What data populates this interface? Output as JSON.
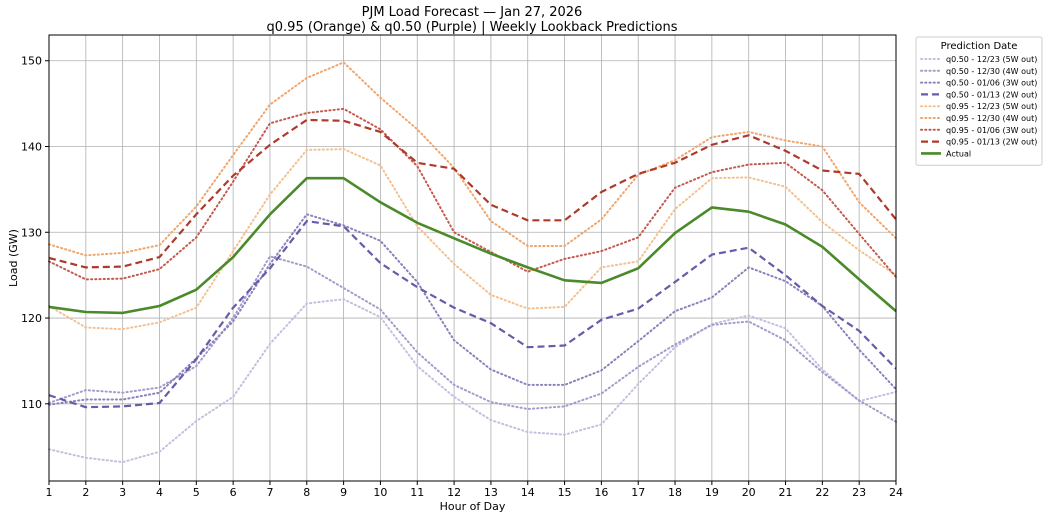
{
  "chart_data": {
    "type": "line",
    "title": "PJM Load Forecast — Jan 27, 2026",
    "subtitle": "q0.95 (Orange) & q0.50 (Purple) | Weekly Lookback Predictions",
    "xlabel": "Hour of Day",
    "ylabel": "Load (GW)",
    "xlim": [
      1,
      24
    ],
    "ylim": [
      101,
      153
    ],
    "x_ticks": [
      1,
      2,
      3,
      4,
      5,
      6,
      7,
      8,
      9,
      10,
      11,
      12,
      13,
      14,
      15,
      16,
      17,
      18,
      19,
      20,
      21,
      22,
      23,
      24
    ],
    "y_ticks": [
      110,
      120,
      130,
      140,
      150
    ],
    "grid": true,
    "legend_title": "Prediction Date",
    "legend_placement": "outside-right-top",
    "x": [
      1,
      2,
      3,
      4,
      5,
      6,
      7,
      8,
      9,
      10,
      11,
      12,
      13,
      14,
      15,
      16,
      17,
      18,
      19,
      20,
      21,
      22,
      23,
      24
    ],
    "series": [
      {
        "name": "q0.50 - 12/23 (5W out)",
        "color": "#c4bedf",
        "style": "dotted",
        "values": [
          104.7,
          103.7,
          103.2,
          104.4,
          108.0,
          110.8,
          117.0,
          121.7,
          122.2,
          120.1,
          114.4,
          110.8,
          108.1,
          106.7,
          106.4,
          107.6,
          112.3,
          116.6,
          119.3,
          120.3,
          118.8,
          114.0,
          110.3,
          111.4
        ]
      },
      {
        "name": "q0.50 - 12/30 (4W out)",
        "color": "#a29bcb",
        "style": "dotted",
        "values": [
          110.1,
          111.6,
          111.3,
          111.9,
          114.4,
          120.0,
          127.2,
          126.0,
          123.5,
          121.0,
          116.0,
          112.2,
          110.2,
          109.4,
          109.7,
          111.2,
          114.3,
          116.9,
          119.2,
          119.6,
          117.4,
          113.7,
          110.4,
          107.9
        ]
      },
      {
        "name": "q0.50 - 01/06 (3W out)",
        "color": "#8a81bb",
        "style": "dotted",
        "values": [
          109.9,
          110.5,
          110.5,
          111.3,
          115.3,
          119.6,
          126.3,
          132.1,
          130.8,
          129.0,
          124.2,
          117.4,
          114.0,
          112.2,
          112.2,
          113.9,
          117.3,
          120.8,
          122.4,
          125.9,
          124.3,
          121.4,
          116.3,
          111.7
        ]
      },
      {
        "name": "q0.50 - 01/13 (2W out)",
        "color": "#6a5aa8",
        "style": "dashed",
        "values": [
          111.0,
          109.6,
          109.7,
          110.1,
          115.2,
          121.2,
          125.8,
          131.3,
          130.7,
          126.4,
          123.6,
          121.2,
          119.4,
          116.6,
          116.8,
          119.8,
          121.1,
          124.2,
          127.4,
          128.2,
          125.0,
          121.4,
          118.5,
          114.1
        ]
      },
      {
        "name": "q0.95 - 12/23 (5W out)",
        "color": "#f5c08e",
        "style": "dotted",
        "values": [
          121.4,
          118.9,
          118.7,
          119.5,
          121.2,
          127.8,
          134.4,
          139.6,
          139.7,
          137.8,
          130.7,
          126.3,
          122.7,
          121.1,
          121.3,
          125.9,
          126.6,
          132.7,
          136.3,
          136.4,
          135.3,
          131.2,
          127.9,
          125.0
        ]
      },
      {
        "name": "q0.95 - 12/30 (4W out)",
        "color": "#f0a56d",
        "style": "dotted",
        "values": [
          128.6,
          127.3,
          127.6,
          128.5,
          133.0,
          139.0,
          144.9,
          148.0,
          149.8,
          145.7,
          142.0,
          137.5,
          131.3,
          128.4,
          128.4,
          131.5,
          136.7,
          138.4,
          141.1,
          141.7,
          140.7,
          140.0,
          133.5,
          129.3
        ]
      },
      {
        "name": "q0.95 - 01/06 (3W out)",
        "color": "#c45a4f",
        "style": "dotted",
        "values": [
          126.6,
          124.5,
          124.6,
          125.7,
          129.4,
          135.9,
          142.7,
          143.9,
          144.4,
          142.0,
          137.7,
          130.0,
          127.7,
          125.4,
          126.9,
          127.8,
          129.4,
          135.2,
          137.0,
          137.9,
          138.1,
          134.9,
          129.8,
          124.8
        ]
      },
      {
        "name": "q0.95 - 01/13 (2W out)",
        "color": "#ad3a2b",
        "style": "dashed",
        "values": [
          127.0,
          125.9,
          126.0,
          127.1,
          132.1,
          136.6,
          140.2,
          143.1,
          143.0,
          141.7,
          138.1,
          137.4,
          133.2,
          131.4,
          131.4,
          134.7,
          136.8,
          138.1,
          140.2,
          141.3,
          139.5,
          137.2,
          136.8,
          131.5
        ]
      },
      {
        "name": "Actual",
        "color": "#4a8a2a",
        "style": "solid",
        "values": [
          121.3,
          120.7,
          120.6,
          121.4,
          123.3,
          127.1,
          132.1,
          136.3,
          136.3,
          133.5,
          131.1,
          129.3,
          127.5,
          125.9,
          124.4,
          124.1,
          125.8,
          129.9,
          132.9,
          132.4,
          130.9,
          128.3,
          124.5,
          120.8
        ]
      }
    ]
  }
}
